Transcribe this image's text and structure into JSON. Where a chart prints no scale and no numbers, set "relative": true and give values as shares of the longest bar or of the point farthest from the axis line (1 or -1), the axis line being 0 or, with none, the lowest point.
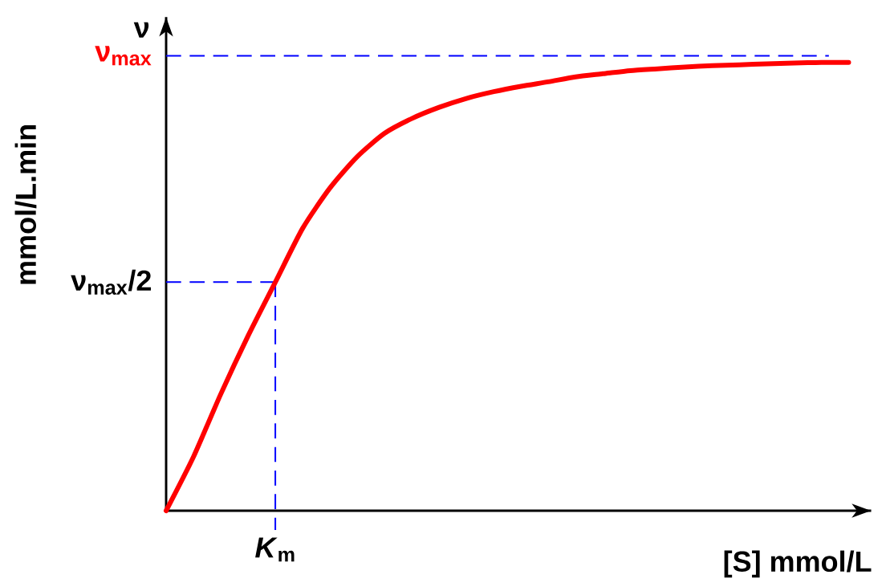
{
  "chart_data": {
    "type": "line",
    "relative": true,
    "xlabel": "[S] mmol/L",
    "ylabel": "mmol/L.min",
    "annotations": [
      "ν",
      "*K*$_{m}$"
    ],
    "categories": [
      null,
      null,
      null,
      null,
      null,
      null,
      null,
      null,
      null,
      null,
      null,
      null,
      null,
      null,
      null,
      null,
      null,
      null,
      null,
      null,
      null,
      null,
      null,
      null,
      null,
      null
    ],
    "series": [
      {
        "color": "#ff0000",
        "values": [
          0,
          0.12,
          0.26,
          0.39,
          0.51,
          0.63,
          0.72,
          0.79,
          0.842,
          0.875,
          0.9,
          0.92,
          0.935,
          0.947,
          0.957,
          0.968,
          0.975,
          0.982,
          0.986,
          0.99,
          0.993,
          0.995,
          0.997,
          0.999,
          1,
          1
        ]
      }
    ],
    "ref_lines": [
      {
        "axis": "y",
        "value": 1.015,
        "label": "ν$_{max}$",
        "color": "#0000ff",
        "line_style": "dashed"
      },
      {
        "axis": "y",
        "value": 0.51,
        "label": "ν$_{max}$/2",
        "color": "#0000ff",
        "line_style": "dashed"
      }
    ],
    "marker": "none",
    "line_style": "solid"
  }
}
